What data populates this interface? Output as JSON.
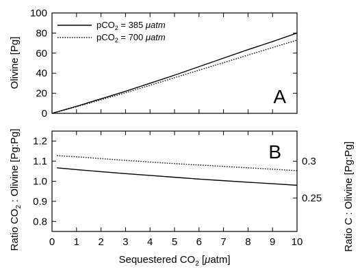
{
  "chart_data": [
    {
      "type": "line",
      "panel_label": "A",
      "ylabel": "Olivine [Pg]",
      "xlim": [
        0,
        10
      ],
      "ylim": [
        0,
        100
      ],
      "xticks": [
        0,
        1,
        2,
        3,
        4,
        5,
        6,
        7,
        8,
        9,
        10
      ],
      "yticks": [
        0,
        20,
        40,
        60,
        80,
        100
      ],
      "ytick_labels": [
        "0",
        "20",
        "40",
        "60",
        "80",
        "100"
      ],
      "legend_position": "top-left",
      "grid": false,
      "series": [
        {
          "name": "pCO₂ = 385 μatm",
          "name_main": "pCO",
          "name_sub": "2",
          "name_rest": " = 385 ",
          "name_unit": "μatm",
          "style": "solid",
          "x": [
            0,
            1,
            2,
            3,
            4,
            5,
            6,
            7,
            8,
            9,
            10
          ],
          "y": [
            0,
            7,
            14.5,
            22,
            30,
            38,
            46.5,
            55,
            63.5,
            71.5,
            80
          ]
        },
        {
          "name": "pCO₂ = 700 μatm",
          "name_main": "pCO",
          "name_sub": "2",
          "name_rest": " = 700 ",
          "name_unit": "μatm",
          "style": "dotted",
          "x": [
            0,
            1,
            2,
            3,
            4,
            5,
            6,
            7,
            8,
            9,
            10
          ],
          "y": [
            0,
            6.5,
            13.5,
            20.5,
            28,
            35.5,
            43,
            50.5,
            58,
            65.5,
            73
          ]
        }
      ]
    },
    {
      "type": "line",
      "panel_label": "B",
      "xlabel": "Sequestered CO₂ [μatm]",
      "xlabel_main": "Sequestered CO",
      "xlabel_sub": "2",
      "xlabel_rest": " [",
      "xlabel_unit": "μ",
      "xlabel_end": "atm]",
      "ylabel": "Ratio CO₂ : Olivine [Pg:Pg]",
      "ylabel_main": "Ratio CO",
      "ylabel_sub": "2",
      "ylabel_rest": " : Olivine [Pg:Pg]",
      "y2label": "Ratio C : Olivine [Pg:Pg]",
      "xlim": [
        0,
        10
      ],
      "ylim": [
        0.75,
        1.25
      ],
      "y2lim": [
        0.2046,
        0.341
      ],
      "xticks": [
        0,
        1,
        2,
        3,
        4,
        5,
        6,
        7,
        8,
        9,
        10
      ],
      "xtick_labels": [
        "0",
        "1",
        "2",
        "3",
        "4",
        "5",
        "6",
        "7",
        "8",
        "9",
        "10"
      ],
      "yticks": [
        0.8,
        0.9,
        1.0,
        1.1,
        1.2
      ],
      "ytick_labels": [
        "0.8",
        "0.9",
        "1.0",
        "1.1",
        "1.2"
      ],
      "y2ticks": [
        0.25,
        0.3
      ],
      "y2tick_labels": [
        "0.25",
        "0.3"
      ],
      "grid": false,
      "series": [
        {
          "style": "solid",
          "x": [
            0.2,
            1,
            2,
            3,
            4,
            5,
            6,
            7,
            8,
            9,
            10
          ],
          "y": [
            1.067,
            1.058,
            1.048,
            1.038,
            1.029,
            1.02,
            1.011,
            1.003,
            0.995,
            0.988,
            0.98
          ]
        },
        {
          "style": "dotted",
          "x": [
            0.2,
            1,
            2,
            3,
            4,
            5,
            6,
            7,
            8,
            9,
            10
          ],
          "y": [
            1.128,
            1.122,
            1.113,
            1.104,
            1.096,
            1.088,
            1.081,
            1.074,
            1.067,
            1.06,
            1.053
          ]
        }
      ]
    }
  ]
}
